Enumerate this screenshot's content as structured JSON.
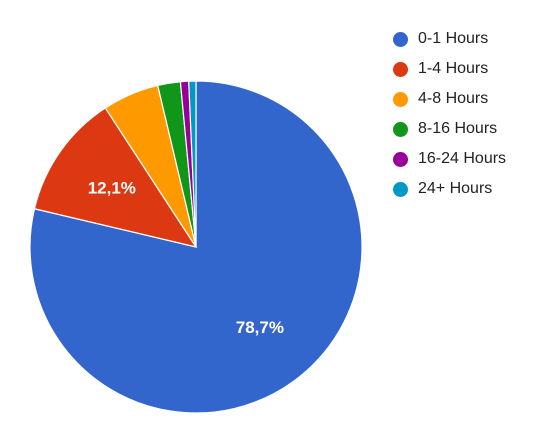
{
  "chart_data": {
    "type": "pie",
    "categories": [
      "0-1 Hours",
      "1-4 Hours",
      "4-8 Hours",
      "8-16 Hours",
      "16-24 Hours",
      "24+ Hours"
    ],
    "values": [
      78.7,
      12.1,
      5.5,
      2.2,
      0.8,
      0.7
    ],
    "colors": [
      "#3366cc",
      "#dc3912",
      "#ff9900",
      "#109618",
      "#990099",
      "#0099c6"
    ],
    "data_labels": [
      "78,7%",
      "12,1%",
      "",
      "",
      "",
      ""
    ],
    "legend_position": "right",
    "title": ""
  }
}
